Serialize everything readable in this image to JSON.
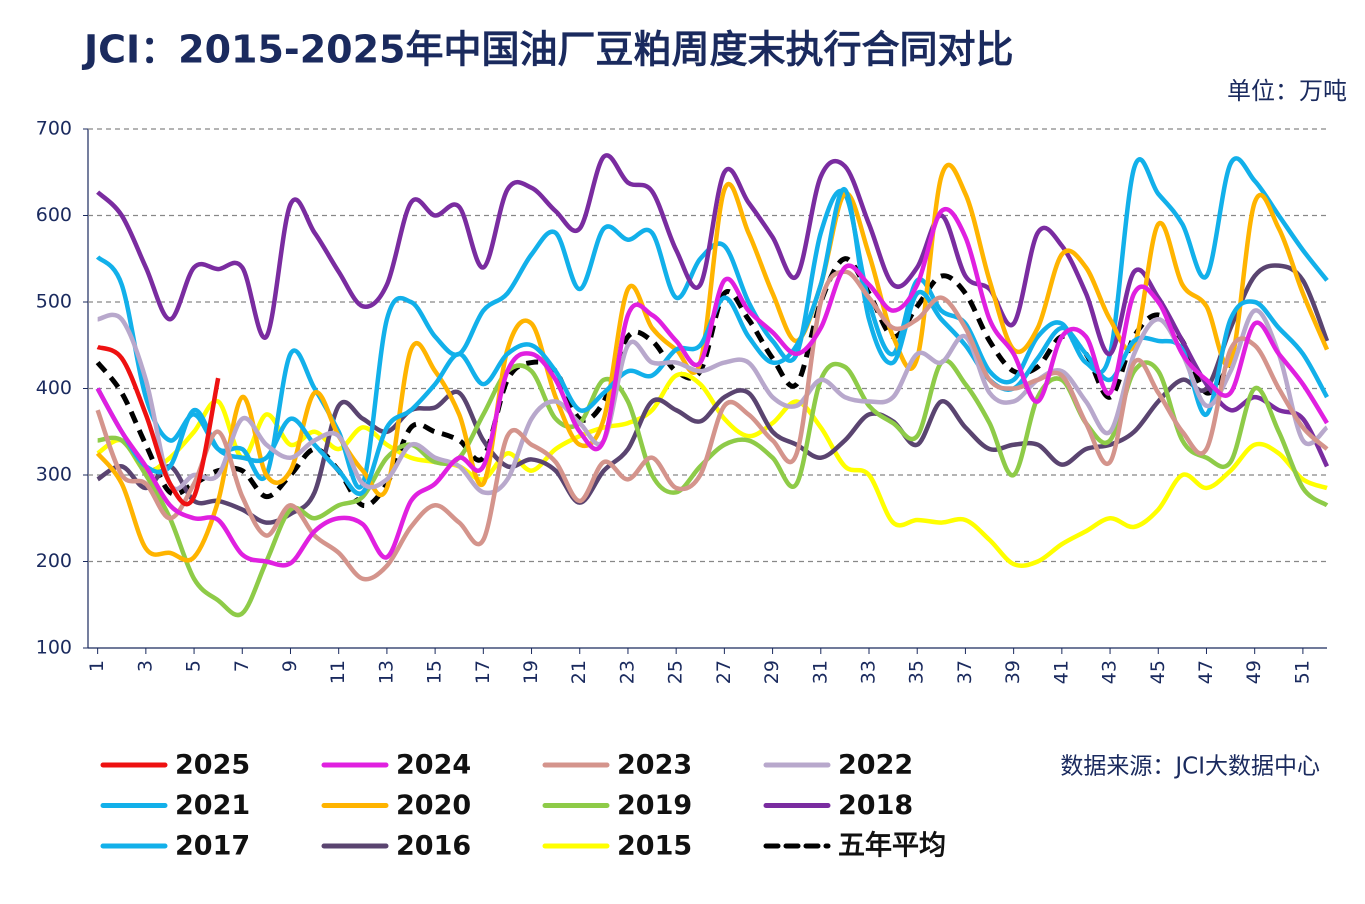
{
  "chart_data": {
    "type": "line",
    "title": "JCI：2015-2025年中国油厂豆粕周度末执行合同对比",
    "unit": "单位：万吨",
    "source": "数据来源：JCI大数据中心",
    "x": [
      1,
      2,
      3,
      4,
      5,
      6,
      7,
      8,
      9,
      10,
      11,
      12,
      13,
      14,
      15,
      16,
      17,
      18,
      19,
      20,
      21,
      22,
      23,
      24,
      25,
      26,
      27,
      28,
      29,
      30,
      31,
      32,
      33,
      34,
      35,
      36,
      37,
      38,
      39,
      40,
      41,
      42,
      43,
      44,
      45,
      46,
      47,
      48,
      49,
      50,
      51,
      52
    ],
    "xlim": [
      0.6,
      52
    ],
    "xticks": [
      1,
      3,
      5,
      7,
      9,
      11,
      13,
      15,
      17,
      19,
      21,
      23,
      25,
      27,
      29,
      31,
      33,
      35,
      37,
      39,
      41,
      43,
      45,
      47,
      49,
      51
    ],
    "ylim": [
      100,
      700
    ],
    "yticks": [
      100,
      200,
      300,
      400,
      500,
      600,
      700
    ],
    "grid": true,
    "series": [
      {
        "name": "2025",
        "color": "#ee1111",
        "values": [
          448,
          435,
          370,
          290,
          275,
          412,
          null,
          null,
          null,
          null,
          null,
          null,
          null,
          null,
          null,
          null,
          null,
          null,
          null,
          null,
          null,
          null,
          null,
          null,
          null,
          null,
          null,
          null,
          null,
          null,
          null,
          null,
          null,
          null,
          null,
          null,
          null,
          null,
          null,
          null,
          null,
          null,
          null,
          null,
          null,
          null,
          null,
          null,
          null,
          null,
          null,
          null
        ]
      },
      {
        "name": "2024",
        "color": "#e020e0",
        "values": [
          400,
          350,
          310,
          265,
          250,
          248,
          208,
          200,
          198,
          235,
          250,
          243,
          205,
          270,
          290,
          320,
          310,
          420,
          440,
          410,
          350,
          340,
          485,
          485,
          455,
          430,
          525,
          490,
          465,
          440,
          470,
          540,
          520,
          490,
          520,
          605,
          575,
          480,
          440,
          385,
          460,
          460,
          395,
          510,
          500,
          440,
          410,
          395,
          475,
          440,
          405,
          360
        ]
      },
      {
        "name": "2023",
        "color": "#d4948c",
        "values": [
          375,
          300,
          290,
          250,
          290,
          350,
          275,
          230,
          265,
          230,
          210,
          180,
          195,
          240,
          265,
          245,
          225,
          345,
          335,
          315,
          270,
          315,
          295,
          320,
          285,
          300,
          380,
          370,
          340,
          325,
          500,
          535,
          505,
          470,
          480,
          505,
          470,
          410,
          400,
          410,
          415,
          360,
          315,
          430,
          395,
          350,
          330,
          445,
          450,
          400,
          355,
          330
        ]
      },
      {
        "name": "2022",
        "color": "#b8a8cc",
        "values": [
          480,
          480,
          410,
          290,
          300,
          300,
          365,
          335,
          320,
          340,
          345,
          290,
          295,
          335,
          320,
          310,
          280,
          295,
          365,
          385,
          360,
          340,
          450,
          430,
          430,
          420,
          430,
          430,
          390,
          380,
          410,
          390,
          385,
          390,
          440,
          430,
          460,
          395,
          385,
          410,
          420,
          385,
          350,
          440,
          480,
          440,
          380,
          420,
          490,
          440,
          340,
          355
        ]
      },
      {
        "name": "2021",
        "color": "#12b0ea",
        "values": [
          400,
          350,
          310,
          310,
          375,
          330,
          320,
          320,
          365,
          335,
          305,
          280,
          355,
          375,
          405,
          440,
          405,
          440,
          450,
          420,
          375,
          395,
          420,
          415,
          445,
          450,
          505,
          460,
          430,
          450,
          520,
          630,
          480,
          430,
          510,
          480,
          450,
          410,
          400,
          435,
          470,
          440,
          410,
          455,
          455,
          445,
          370,
          480,
          500,
          470,
          440,
          390
        ]
      },
      {
        "name": "2020",
        "color": "#ffb400",
        "values": [
          325,
          290,
          215,
          210,
          205,
          270,
          390,
          300,
          305,
          395,
          345,
          305,
          285,
          445,
          420,
          370,
          290,
          445,
          475,
          390,
          335,
          365,
          515,
          470,
          445,
          430,
          630,
          580,
          510,
          455,
          520,
          625,
          555,
          460,
          435,
          645,
          625,
          525,
          445,
          470,
          555,
          540,
          480,
          450,
          590,
          520,
          495,
          430,
          615,
          585,
          510,
          445
        ]
      },
      {
        "name": "2019",
        "color": "#8ecb48",
        "values": [
          340,
          340,
          300,
          250,
          180,
          155,
          140,
          200,
          260,
          250,
          265,
          275,
          320,
          335,
          315,
          320,
          370,
          420,
          420,
          365,
          360,
          410,
          385,
          300,
          280,
          310,
          335,
          340,
          320,
          290,
          410,
          425,
          380,
          360,
          345,
          430,
          405,
          360,
          300,
          390,
          410,
          360,
          340,
          420,
          420,
          340,
          320,
          315,
          400,
          350,
          285,
          265
        ]
      },
      {
        "name": "2018",
        "color": "#7a2ca0",
        "values": [
          627,
          600,
          540,
          480,
          540,
          538,
          540,
          460,
          613,
          580,
          535,
          495,
          520,
          615,
          600,
          610,
          540,
          630,
          632,
          605,
          585,
          668,
          638,
          628,
          560,
          520,
          650,
          615,
          575,
          530,
          645,
          657,
          590,
          520,
          540,
          600,
          530,
          515,
          475,
          580,
          565,
          510,
          440,
          535,
          505,
          455,
          405,
          375,
          390,
          375,
          365,
          310
        ]
      },
      {
        "name": "2017",
        "color": "#12b0ea",
        "values": [
          552,
          520,
          390,
          340,
          370,
          330,
          330,
          300,
          440,
          400,
          350,
          290,
          480,
          500,
          460,
          440,
          490,
          510,
          555,
          580,
          515,
          585,
          572,
          580,
          505,
          550,
          565,
          500,
          455,
          440,
          580,
          625,
          500,
          440,
          525,
          490,
          475,
          420,
          410,
          460,
          475,
          430,
          440,
          655,
          625,
          590,
          530,
          660,
          640,
          600,
          560,
          525
        ]
      },
      {
        "name": "2016",
        "color": "#5a4470",
        "values": [
          295,
          310,
          285,
          310,
          270,
          270,
          260,
          245,
          255,
          280,
          380,
          365,
          350,
          375,
          378,
          395,
          340,
          310,
          318,
          305,
          268,
          305,
          330,
          385,
          375,
          362,
          390,
          395,
          350,
          335,
          320,
          340,
          370,
          362,
          335,
          385,
          355,
          330,
          335,
          335,
          312,
          330,
          335,
          350,
          385,
          410,
          400,
          470,
          530,
          542,
          525,
          455
        ]
      },
      {
        "name": "2015",
        "color": "#ffff00",
        "values": [
          325,
          340,
          305,
          320,
          350,
          385,
          320,
          370,
          335,
          350,
          330,
          355,
          335,
          320,
          315,
          310,
          295,
          325,
          305,
          330,
          345,
          355,
          360,
          375,
          415,
          405,
          365,
          345,
          360,
          385,
          355,
          310,
          300,
          245,
          248,
          245,
          248,
          225,
          197,
          200,
          220,
          235,
          250,
          240,
          260,
          300,
          285,
          305,
          335,
          325,
          295,
          285
        ]
      },
      {
        "name": "五年平均",
        "color": "#000000",
        "dashed": true,
        "values": [
          430,
          395,
          335,
          280,
          290,
          305,
          305,
          275,
          300,
          330,
          305,
          265,
          290,
          355,
          350,
          340,
          320,
          410,
          430,
          420,
          365,
          385,
          460,
          455,
          420,
          420,
          510,
          480,
          435,
          405,
          500,
          550,
          510,
          460,
          495,
          530,
          510,
          455,
          420,
          425,
          460,
          440,
          390,
          460,
          485,
          455,
          395,
          430,
          null,
          null,
          null,
          null
        ]
      }
    ]
  }
}
